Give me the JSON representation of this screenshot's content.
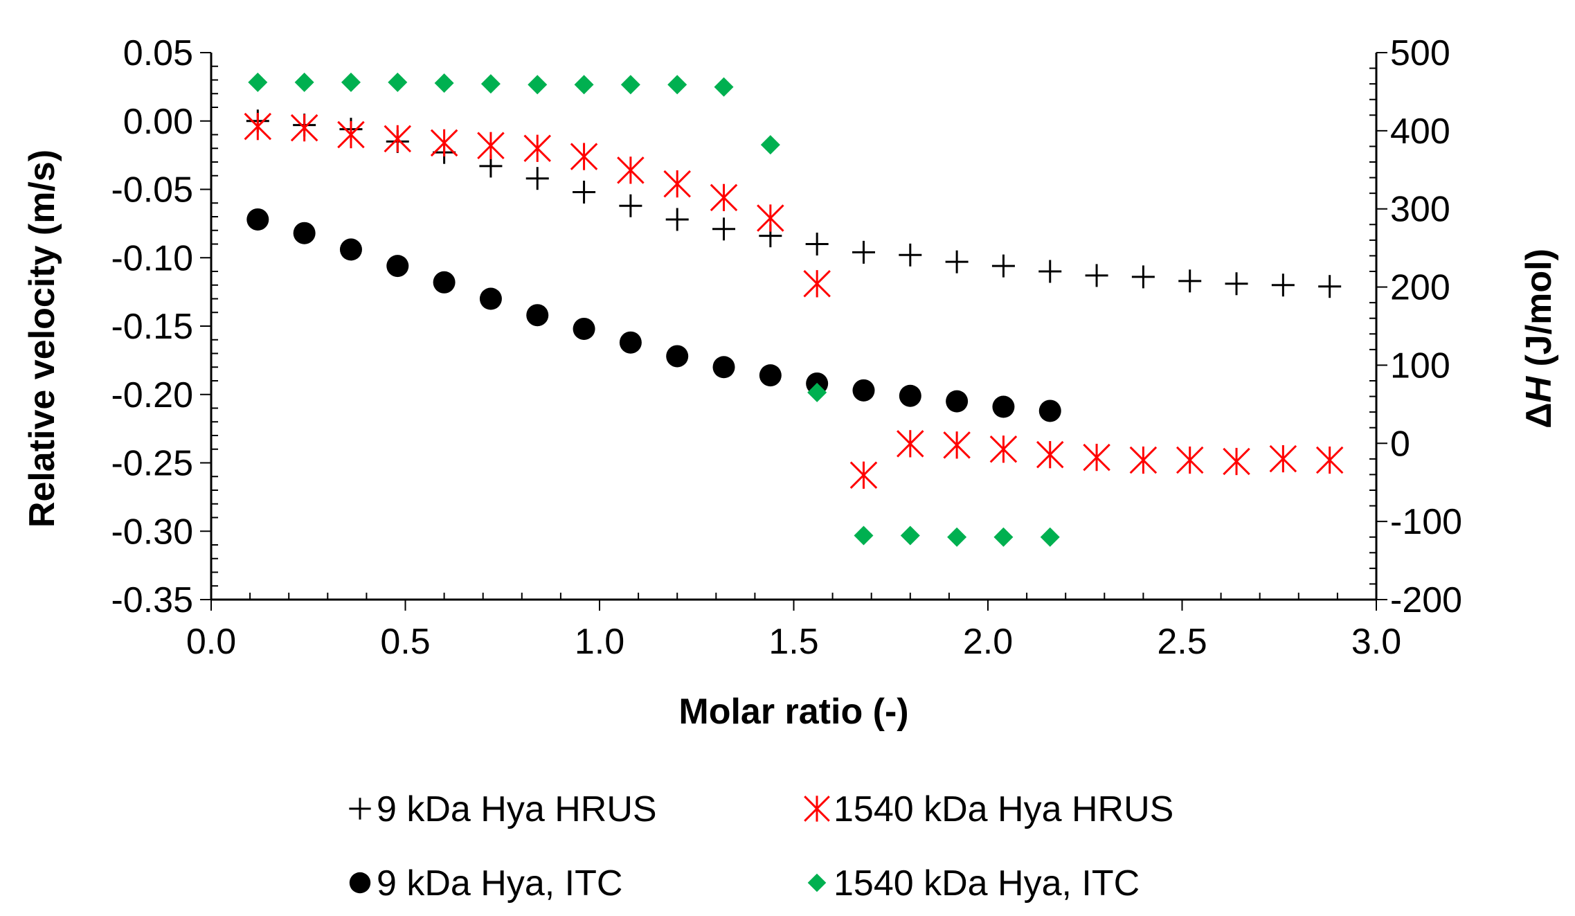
{
  "chart_data": {
    "type": "scatter",
    "title": "",
    "xlabel": "Molar ratio (-)",
    "ylabel_left": "Relative velocity (m/s)",
    "ylabel_right_prefix": "Δ",
    "ylabel_right_var": "H",
    "ylabel_right_unit": " (J/mol)",
    "xlim": [
      0.0,
      3.0
    ],
    "ylim_left": [
      -0.35,
      0.05
    ],
    "ylim_right": [
      -200,
      500
    ],
    "x_ticks": [
      "0.0",
      "0.5",
      "1.0",
      "1.5",
      "2.0",
      "2.5",
      "3.0"
    ],
    "y_left_ticks": [
      "0.05",
      "0.00",
      "-0.05",
      "-0.10",
      "-0.15",
      "-0.20",
      "-0.25",
      "-0.30",
      "-0.35"
    ],
    "y_right_ticks": [
      "500",
      "400",
      "300",
      "200",
      "100",
      "0",
      "-100",
      "-200"
    ],
    "legend_position": "bottom",
    "series": [
      {
        "name": "9 kDa Hya HRUS",
        "marker": "plus",
        "color": "#000000",
        "axis": "left",
        "x": [
          0.12,
          0.24,
          0.36,
          0.48,
          0.6,
          0.72,
          0.84,
          0.96,
          1.08,
          1.2,
          1.32,
          1.44,
          1.56,
          1.68,
          1.8,
          1.92,
          2.04,
          2.16,
          2.28,
          2.4,
          2.52,
          2.64,
          2.76,
          2.88
        ],
        "y": [
          0.0,
          -0.003,
          -0.006,
          -0.015,
          -0.023,
          -0.033,
          -0.042,
          -0.052,
          -0.062,
          -0.072,
          -0.079,
          -0.084,
          -0.09,
          -0.096,
          -0.098,
          -0.103,
          -0.106,
          -0.11,
          -0.113,
          -0.114,
          -0.117,
          -0.119,
          -0.12,
          -0.121
        ]
      },
      {
        "name": "1540 kDa Hya HRUS",
        "marker": "asterisk",
        "color": "#ff0000",
        "axis": "left",
        "x": [
          0.12,
          0.24,
          0.36,
          0.48,
          0.6,
          0.72,
          0.84,
          0.96,
          1.08,
          1.2,
          1.32,
          1.44,
          1.56,
          1.68,
          1.8,
          1.92,
          2.04,
          2.16,
          2.28,
          2.4,
          2.52,
          2.64,
          2.76,
          2.88
        ],
        "y": [
          -0.004,
          -0.005,
          -0.01,
          -0.013,
          -0.016,
          -0.018,
          -0.02,
          -0.026,
          -0.036,
          -0.046,
          -0.056,
          -0.071,
          -0.119,
          -0.259,
          -0.236,
          -0.237,
          -0.24,
          -0.244,
          -0.246,
          -0.248,
          -0.248,
          -0.249,
          -0.247,
          -0.248
        ]
      },
      {
        "name": "9 kDa Hya, ITC",
        "marker": "circle",
        "color": "#000000",
        "axis": "left",
        "x": [
          0.12,
          0.24,
          0.36,
          0.48,
          0.6,
          0.72,
          0.84,
          0.96,
          1.08,
          1.2,
          1.32,
          1.44,
          1.56,
          1.68,
          1.8,
          1.92,
          2.04,
          2.16
        ],
        "y": [
          -0.072,
          -0.082,
          -0.094,
          -0.106,
          -0.118,
          -0.13,
          -0.142,
          -0.152,
          -0.162,
          -0.172,
          -0.18,
          -0.186,
          -0.192,
          -0.197,
          -0.201,
          -0.205,
          -0.209,
          -0.212
        ]
      },
      {
        "name": "1540 kDa Hya, ITC",
        "marker": "diamond",
        "color": "#00b050",
        "axis": "right",
        "x": [
          0.12,
          0.24,
          0.36,
          0.48,
          0.6,
          0.72,
          0.84,
          0.96,
          1.08,
          1.2,
          1.32,
          1.44,
          1.56,
          1.68,
          1.8,
          1.92,
          2.04,
          2.16
        ],
        "y": [
          462,
          462,
          462,
          462,
          461,
          460,
          459,
          459,
          459,
          459,
          456,
          382,
          65,
          -118,
          -118,
          -120,
          -120,
          -120
        ]
      }
    ]
  }
}
